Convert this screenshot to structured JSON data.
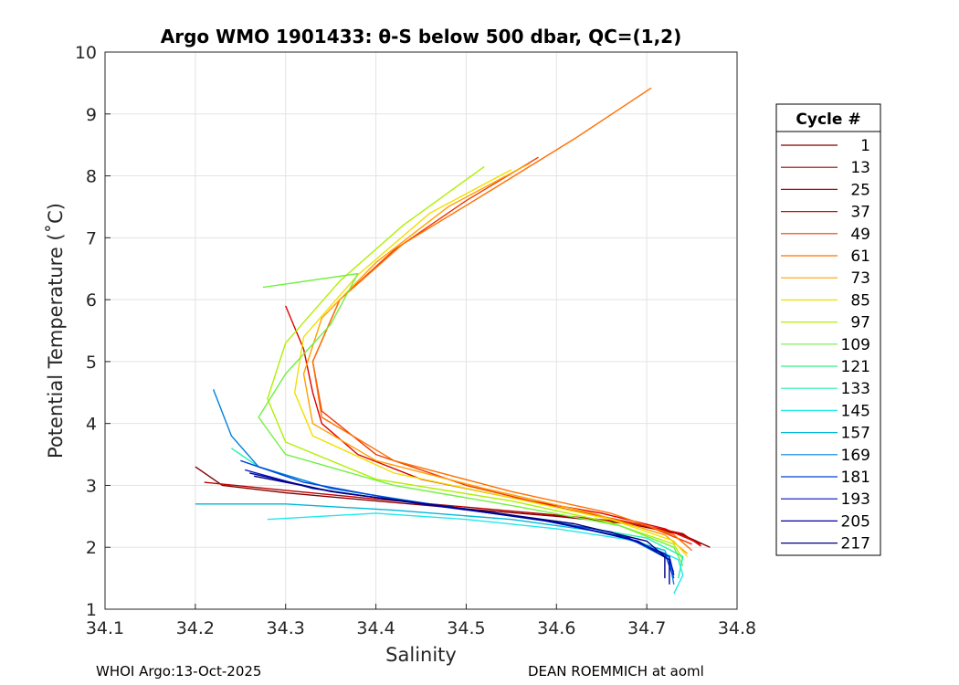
{
  "chart_data": {
    "type": "line",
    "title": "Argo WMO 1901433: θ-S below 500 dbar,  QC=(1,2)",
    "xlabel": "Salinity",
    "ylabel": "Potential Temperature (˚C)",
    "xlim": [
      34.1,
      34.8
    ],
    "ylim": [
      1,
      10
    ],
    "xticks": [
      "34.1",
      "34.2",
      "34.3",
      "34.4",
      "34.5",
      "34.6",
      "34.7",
      "34.8"
    ],
    "yticks": [
      "1",
      "2",
      "3",
      "4",
      "5",
      "6",
      "7",
      "8",
      "9",
      "10"
    ],
    "grid": true,
    "legend": {
      "title": "Cycle #",
      "placement": "right",
      "entries": [
        "1",
        "13",
        "25",
        "37",
        "49",
        "61",
        "73",
        "85",
        "97",
        "109",
        "121",
        "133",
        "145",
        "157",
        "169",
        "181",
        "193",
        "205",
        "217"
      ],
      "colors": [
        "#800000",
        "#9f0000",
        "#c00000",
        "#e00000",
        "#f03800",
        "#ff7000",
        "#ffa000",
        "#f0e000",
        "#b0f000",
        "#70f040",
        "#30f080",
        "#20f0b0",
        "#20e8e8",
        "#00b8d8",
        "#0080e0",
        "#0040e0",
        "#0010c0",
        "#0000a0",
        "#000080"
      ]
    },
    "series_note": "one theta-S profile per cycle (representative curves)",
    "series": [
      {
        "name": "1",
        "values": [
          [
            34.2,
            3.3
          ],
          [
            34.23,
            3.0
          ],
          [
            34.3,
            2.88
          ],
          [
            34.4,
            2.75
          ],
          [
            34.5,
            2.62
          ],
          [
            34.6,
            2.5
          ],
          [
            34.68,
            2.38
          ],
          [
            34.74,
            2.2
          ],
          [
            34.77,
            2.0
          ]
        ]
      },
      {
        "name": "25",
        "values": [
          [
            34.21,
            3.05
          ],
          [
            34.3,
            2.92
          ],
          [
            34.4,
            2.78
          ],
          [
            34.5,
            2.65
          ],
          [
            34.6,
            2.52
          ],
          [
            34.68,
            2.4
          ],
          [
            34.74,
            2.22
          ],
          [
            34.76,
            2.02
          ]
        ]
      },
      {
        "name": "37",
        "values": [
          [
            34.3,
            5.9
          ],
          [
            34.32,
            5.2
          ],
          [
            34.33,
            4.5
          ],
          [
            34.34,
            4.0
          ],
          [
            34.38,
            3.5
          ],
          [
            34.45,
            3.1
          ],
          [
            34.55,
            2.8
          ],
          [
            34.65,
            2.55
          ],
          [
            34.72,
            2.3
          ],
          [
            34.76,
            2.05
          ]
        ]
      },
      {
        "name": "49",
        "values": [
          [
            34.58,
            8.3
          ],
          [
            34.5,
            7.6
          ],
          [
            34.42,
            6.8
          ],
          [
            34.36,
            6.0
          ],
          [
            34.33,
            5.0
          ],
          [
            34.34,
            4.2
          ],
          [
            34.4,
            3.5
          ],
          [
            34.5,
            3.0
          ],
          [
            34.6,
            2.65
          ],
          [
            34.7,
            2.35
          ],
          [
            34.75,
            2.05
          ]
        ]
      },
      {
        "name": "61",
        "values": [
          [
            34.705,
            9.42
          ],
          [
            34.62,
            8.6
          ],
          [
            34.52,
            7.7
          ],
          [
            34.43,
            6.9
          ],
          [
            34.36,
            6.0
          ],
          [
            34.33,
            5.0
          ],
          [
            34.34,
            4.1
          ],
          [
            34.42,
            3.4
          ],
          [
            34.55,
            2.9
          ],
          [
            34.66,
            2.55
          ],
          [
            34.73,
            2.2
          ],
          [
            34.75,
            1.95
          ]
        ]
      },
      {
        "name": "73",
        "values": [
          [
            34.57,
            8.2
          ],
          [
            34.48,
            7.5
          ],
          [
            34.4,
            6.6
          ],
          [
            34.34,
            5.7
          ],
          [
            34.32,
            4.8
          ],
          [
            34.33,
            4.0
          ],
          [
            34.4,
            3.4
          ],
          [
            34.52,
            2.95
          ],
          [
            34.64,
            2.55
          ],
          [
            34.72,
            2.2
          ],
          [
            34.745,
            1.9
          ]
        ]
      },
      {
        "name": "85",
        "values": [
          [
            34.55,
            8.1
          ],
          [
            34.46,
            7.4
          ],
          [
            34.38,
            6.4
          ],
          [
            34.32,
            5.4
          ],
          [
            34.31,
            4.5
          ],
          [
            34.33,
            3.8
          ],
          [
            34.42,
            3.2
          ],
          [
            34.55,
            2.8
          ],
          [
            34.66,
            2.45
          ],
          [
            34.73,
            2.1
          ],
          [
            34.745,
            1.85
          ]
        ]
      },
      {
        "name": "97",
        "values": [
          [
            34.52,
            8.15
          ],
          [
            34.43,
            7.2
          ],
          [
            34.36,
            6.3
          ],
          [
            34.3,
            5.3
          ],
          [
            34.28,
            4.4
          ],
          [
            34.3,
            3.7
          ],
          [
            34.4,
            3.1
          ],
          [
            34.55,
            2.75
          ],
          [
            34.66,
            2.4
          ],
          [
            34.73,
            2.05
          ],
          [
            34.74,
            1.8
          ]
        ]
      },
      {
        "name": "109",
        "values": [
          [
            34.275,
            6.2
          ],
          [
            34.38,
            6.42
          ],
          [
            34.35,
            5.6
          ],
          [
            34.3,
            4.8
          ],
          [
            34.27,
            4.1
          ],
          [
            34.3,
            3.5
          ],
          [
            34.42,
            3.0
          ],
          [
            34.56,
            2.65
          ],
          [
            34.67,
            2.35
          ],
          [
            34.73,
            2.0
          ],
          [
            34.74,
            1.7
          ]
        ]
      },
      {
        "name": "133",
        "values": [
          [
            34.24,
            3.6
          ],
          [
            34.27,
            3.3
          ],
          [
            34.35,
            2.95
          ],
          [
            34.48,
            2.65
          ],
          [
            34.6,
            2.4
          ],
          [
            34.7,
            2.15
          ],
          [
            34.74,
            1.85
          ],
          [
            34.735,
            1.5
          ]
        ]
      },
      {
        "name": "145",
        "values": [
          [
            34.28,
            2.45
          ],
          [
            34.4,
            2.55
          ],
          [
            34.5,
            2.45
          ],
          [
            34.6,
            2.3
          ],
          [
            34.69,
            2.1
          ],
          [
            34.735,
            1.8
          ],
          [
            34.74,
            1.55
          ],
          [
            34.73,
            1.25
          ]
        ]
      },
      {
        "name": "157",
        "values": [
          [
            34.2,
            2.7
          ],
          [
            34.3,
            2.7
          ],
          [
            34.42,
            2.6
          ],
          [
            34.55,
            2.45
          ],
          [
            34.65,
            2.25
          ],
          [
            34.72,
            1.95
          ],
          [
            34.73,
            1.6
          ]
        ]
      },
      {
        "name": "169",
        "values": [
          [
            34.22,
            4.55
          ],
          [
            34.24,
            3.8
          ],
          [
            34.27,
            3.3
          ],
          [
            34.35,
            2.95
          ],
          [
            34.46,
            2.7
          ],
          [
            34.58,
            2.45
          ],
          [
            34.68,
            2.15
          ],
          [
            34.725,
            1.8
          ],
          [
            34.73,
            1.4
          ]
        ]
      },
      {
        "name": "181",
        "values": [
          [
            34.25,
            3.4
          ],
          [
            34.32,
            3.05
          ],
          [
            34.42,
            2.78
          ],
          [
            34.55,
            2.52
          ],
          [
            34.66,
            2.25
          ],
          [
            34.72,
            1.9
          ],
          [
            34.73,
            1.5
          ]
        ]
      },
      {
        "name": "193",
        "values": [
          [
            34.255,
            3.25
          ],
          [
            34.33,
            2.95
          ],
          [
            34.45,
            2.7
          ],
          [
            34.58,
            2.45
          ],
          [
            34.68,
            2.15
          ],
          [
            34.725,
            1.85
          ],
          [
            34.73,
            1.55
          ]
        ]
      },
      {
        "name": "205",
        "values": [
          [
            34.26,
            3.2
          ],
          [
            34.35,
            2.9
          ],
          [
            34.48,
            2.65
          ],
          [
            34.6,
            2.4
          ],
          [
            34.69,
            2.1
          ],
          [
            34.725,
            1.8
          ],
          [
            34.725,
            1.4
          ]
        ]
      },
      {
        "name": "217",
        "values": [
          [
            34.265,
            3.15
          ],
          [
            34.36,
            2.88
          ],
          [
            34.5,
            2.62
          ],
          [
            34.62,
            2.38
          ],
          [
            34.7,
            2.1
          ],
          [
            34.72,
            1.85
          ],
          [
            34.72,
            1.5
          ]
        ]
      }
    ]
  },
  "footer": {
    "left": "WHOI Argo:13-Oct-2025",
    "right": "DEAN ROEMMICH at aoml"
  }
}
